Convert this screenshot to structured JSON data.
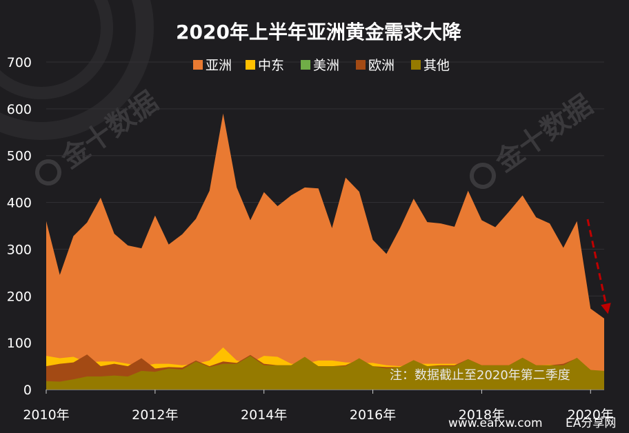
{
  "colors": {
    "background": "#1e1d20",
    "asia": "#e97a32",
    "middle_east": "#ffc000",
    "americas": "#70ad47",
    "europe": "#a34a14",
    "other": "#957a00",
    "arrow": "#c00000"
  },
  "watermark": "金十数据",
  "note": "注：数据截止至2020年第二季度",
  "footer": {
    "site": "www.eafxw.com",
    "brand": "EA分享网"
  },
  "chart_data": {
    "type": "area",
    "title": "2020年上半年亚洲黄金需求大降",
    "xlabel": "",
    "ylabel": "",
    "ylim": [
      0,
      700
    ],
    "yticks": [
      0,
      100,
      200,
      300,
      400,
      500,
      600,
      700
    ],
    "grid": true,
    "stacked": false,
    "legend_position": "top-center",
    "x": [
      "2010Q1",
      "2010Q2",
      "2010Q3",
      "2010Q4",
      "2011Q1",
      "2011Q2",
      "2011Q3",
      "2011Q4",
      "2012Q1",
      "2012Q2",
      "2012Q3",
      "2012Q4",
      "2013Q1",
      "2013Q2",
      "2013Q3",
      "2013Q4",
      "2014Q1",
      "2014Q2",
      "2014Q3",
      "2014Q4",
      "2015Q1",
      "2015Q2",
      "2015Q3",
      "2015Q4",
      "2016Q1",
      "2016Q2",
      "2016Q3",
      "2016Q4",
      "2017Q1",
      "2017Q2",
      "2017Q3",
      "2017Q4",
      "2018Q1",
      "2018Q2",
      "2018Q3",
      "2018Q4",
      "2019Q1",
      "2019Q2",
      "2019Q3",
      "2019Q4",
      "2020Q1",
      "2020Q2"
    ],
    "x_tick_labels": [
      {
        "index": 0,
        "label": "2010年"
      },
      {
        "index": 8,
        "label": "2012年"
      },
      {
        "index": 16,
        "label": "2014年"
      },
      {
        "index": 24,
        "label": "2016年"
      },
      {
        "index": 32,
        "label": "2018年"
      },
      {
        "index": 40,
        "label": "2020年"
      }
    ],
    "series": [
      {
        "name": "亚洲",
        "color": "#e97a32",
        "values": [
          360,
          245,
          328,
          357,
          410,
          333,
          308,
          302,
          372,
          310,
          332,
          365,
          425,
          590,
          432,
          362,
          422,
          392,
          415,
          432,
          430,
          345,
          453,
          423,
          320,
          290,
          345,
          408,
          358,
          355,
          348,
          425,
          362,
          347,
          380,
          415,
          368,
          355,
          303,
          360,
          173,
          152
        ]
      },
      {
        "name": "中东",
        "color": "#ffc000",
        "values": [
          72,
          67,
          70,
          58,
          60,
          60,
          55,
          50,
          55,
          55,
          52,
          55,
          62,
          90,
          62,
          57,
          72,
          70,
          55,
          55,
          62,
          62,
          58,
          57,
          57,
          52,
          50,
          55,
          55,
          55,
          55,
          55,
          52,
          50,
          52,
          55,
          52,
          53,
          52,
          52,
          42,
          38
        ]
      },
      {
        "name": "美洲",
        "color": "#70ad47",
        "values": [
          18,
          17,
          17,
          18,
          18,
          17,
          17,
          17,
          18,
          17,
          17,
          17,
          17,
          20,
          17,
          17,
          17,
          16,
          16,
          16,
          16,
          16,
          16,
          16,
          16,
          16,
          16,
          16,
          16,
          16,
          16,
          16,
          16,
          16,
          16,
          16,
          16,
          16,
          16,
          16,
          14,
          12
        ]
      },
      {
        "name": "欧洲",
        "color": "#a34a14",
        "values": [
          50,
          55,
          58,
          75,
          50,
          55,
          50,
          67,
          45,
          48,
          47,
          62,
          50,
          60,
          57,
          74,
          55,
          52,
          52,
          68,
          50,
          50,
          52,
          65,
          50,
          48,
          48,
          60,
          50,
          52,
          52,
          65,
          52,
          52,
          52,
          68,
          52,
          52,
          55,
          67,
          42,
          35
        ]
      },
      {
        "name": "其他",
        "color": "#957a00",
        "values": [
          18,
          17,
          22,
          28,
          28,
          30,
          28,
          40,
          38,
          45,
          43,
          60,
          48,
          55,
          55,
          72,
          52,
          52,
          52,
          70,
          50,
          50,
          50,
          67,
          50,
          45,
          48,
          63,
          50,
          50,
          50,
          65,
          52,
          52,
          52,
          68,
          52,
          52,
          52,
          68,
          42,
          40
        ]
      }
    ]
  }
}
